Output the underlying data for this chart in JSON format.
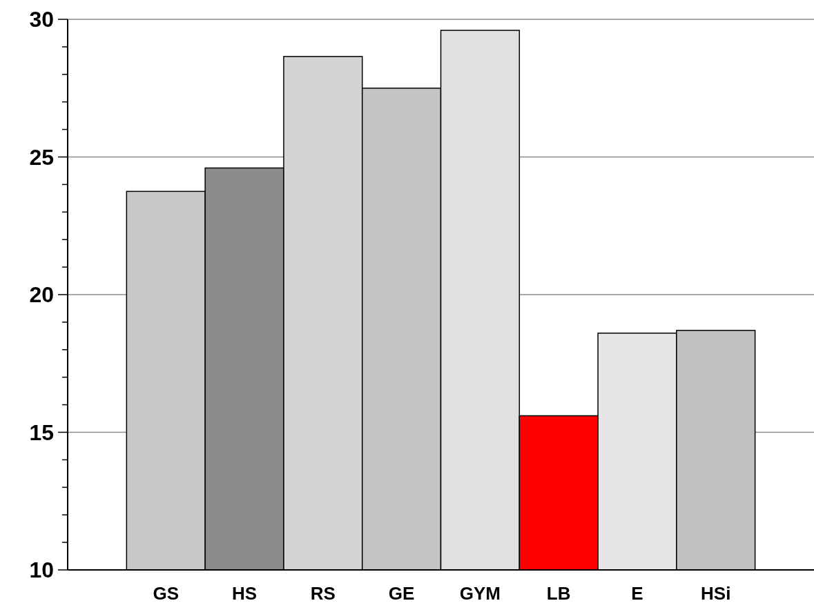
{
  "chart_data": {
    "type": "bar",
    "categories": [
      "GS",
      "HS",
      "RS",
      "GE",
      "GYM",
      "LB",
      "E",
      "HSi"
    ],
    "values": [
      23.75,
      24.6,
      28.65,
      27.5,
      29.6,
      15.6,
      18.6,
      18.7
    ],
    "colors": [
      "#c8c8c8",
      "#8c8c8c",
      "#d4d4d4",
      "#c4c4c4",
      "#e0e0e0",
      "#ff0000",
      "#e6e6e6",
      "#c0c0c0"
    ],
    "ylim": [
      10,
      30
    ],
    "yticks": [
      10,
      {
        "value": 11,
        "label": null
      },
      {
        "value": 12,
        "label": null
      },
      {
        "value": 13,
        "label": null
      },
      {
        "value": 14,
        "label": null
      },
      15,
      {
        "value": 16,
        "label": null
      },
      {
        "value": 17,
        "label": null
      },
      {
        "value": 18,
        "label": null
      },
      {
        "value": 19,
        "label": null
      },
      20,
      {
        "value": 21,
        "label": null
      },
      {
        "value": 22,
        "label": null
      },
      {
        "value": 23,
        "label": null
      },
      {
        "value": 24,
        "label": null
      },
      25,
      {
        "value": 26,
        "label": null
      },
      {
        "value": 27,
        "label": null
      },
      {
        "value": 28,
        "label": null
      },
      {
        "value": 29,
        "label": null
      },
      30
    ],
    "grid": "y"
  }
}
